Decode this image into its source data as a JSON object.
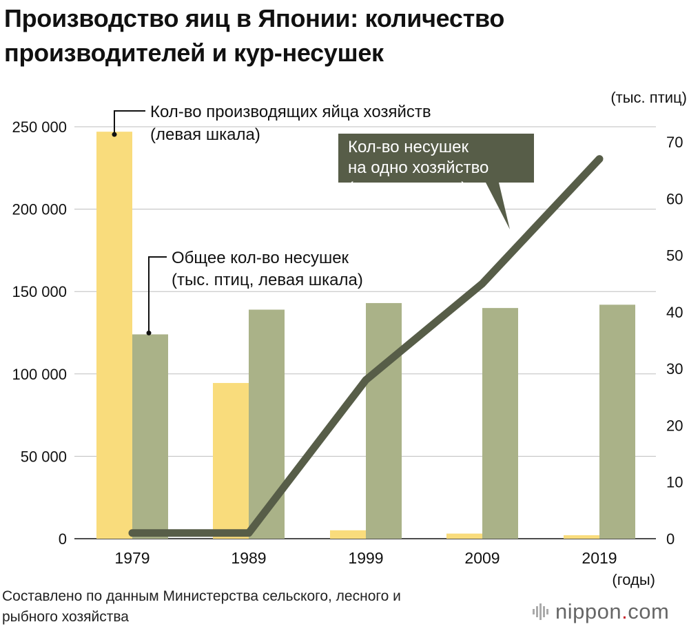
{
  "title": {
    "line1": "Производство яиц в Японии: количество",
    "line2": "производителей и кур-несушек"
  },
  "chart_data": {
    "type": "bar",
    "categories": [
      "1979",
      "1989",
      "1999",
      "2009",
      "2019"
    ],
    "x_unit_label": "(годы)",
    "right_unit_label": "(тыс. птиц)",
    "left_axis": {
      "ylim": [
        0,
        250000
      ],
      "ticks": [
        "250 000",
        "200 000",
        "150 000",
        "100 000",
        "50 000",
        "0"
      ],
      "tick_values": [
        250000,
        200000,
        150000,
        100000,
        50000,
        0
      ]
    },
    "right_axis": {
      "ylim": [
        0,
        70
      ],
      "ticks": [
        "70",
        "60",
        "50",
        "40",
        "30",
        "20",
        "10",
        "0"
      ],
      "tick_values": [
        70,
        60,
        50,
        40,
        30,
        20,
        10,
        0
      ]
    },
    "series": [
      {
        "label_line1": "Кол-во производящих яйца хозяйств",
        "label_line2": "(левая шкала)",
        "kind": "bar",
        "axis": "left",
        "color": "#f9dc7c",
        "values": [
          247000,
          94500,
          5100,
          3100,
          2100
        ]
      },
      {
        "label_line1": "Общее кол-во несушек",
        "label_line2": "(тыс. птиц, левая шкала)",
        "kind": "bar",
        "axis": "left",
        "color": "#aab288",
        "values": [
          124000,
          139000,
          143000,
          140000,
          142000
        ]
      },
      {
        "label_line1": "Кол-во несушек",
        "label_line2": "на одно хозяйство",
        "label_line3": "(правая шкала)",
        "kind": "line",
        "axis": "right",
        "color": "#575d48",
        "values": [
          1.0,
          1.0,
          28.0,
          45.0,
          67.0
        ]
      }
    ],
    "grid": true
  },
  "source": {
    "line1": "Составлено по данным Министерства сельского, лесного и",
    "line2": "рыбного хозяйства"
  },
  "logo": {
    "text_main": "nippon",
    "text_dot": ".",
    "text_tld": "com"
  }
}
